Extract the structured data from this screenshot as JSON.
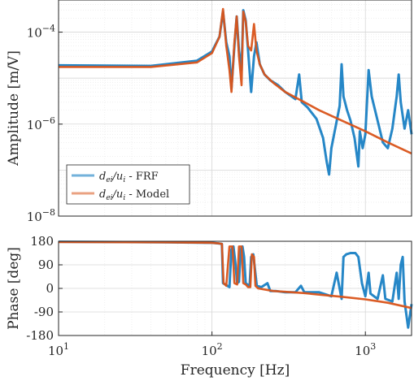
{
  "chart_data": [
    {
      "type": "line",
      "name": "amplitude",
      "ylabel": "Amplitude [m/V]",
      "xscale": "log",
      "yscale": "log",
      "xlim": [
        10,
        2000
      ],
      "ylim": [
        1e-08,
        0.0005
      ],
      "yticks": [
        {
          "value": 1e-08,
          "base": "10",
          "exp": "−8"
        },
        {
          "value": 1e-06,
          "base": "10",
          "exp": "−6"
        },
        {
          "value": 0.0001,
          "base": "10",
          "exp": "−4"
        }
      ],
      "grid": true,
      "legend": {
        "placement": "bottom-left",
        "entries": [
          {
            "prefix": "d",
            "sub1": "ei",
            "mid": "/u",
            "sub2": "i",
            "suffix": " - FRF"
          },
          {
            "prefix": "d",
            "sub1": "ei",
            "mid": "/u",
            "sub2": "i",
            "suffix": " - Model"
          }
        ]
      },
      "series": [
        {
          "name": "FRF",
          "color": "#0072BD",
          "points": [
            [
              10,
              1.9e-05
            ],
            [
              40,
              1.85e-05
            ],
            [
              80,
              2.4e-05
            ],
            [
              100,
              3.8e-05
            ],
            [
              112,
              8e-05
            ],
            [
              118,
              0.00028
            ],
            [
              124,
              6e-05
            ],
            [
              130,
              3e-05
            ],
            [
              134,
              6e-06
            ],
            [
              140,
              5e-05
            ],
            [
              145,
              0.00022
            ],
            [
              150,
              4e-05
            ],
            [
              156,
              1.5e-05
            ],
            [
              160,
              0.0003
            ],
            [
              166,
              0.00018
            ],
            [
              172,
              4e-05
            ],
            [
              180,
              5e-06
            ],
            [
              188,
              3e-05
            ],
            [
              195,
              6e-05
            ],
            [
              205,
              2e-05
            ],
            [
              220,
              1.2e-05
            ],
            [
              240,
              9e-06
            ],
            [
              270,
              7e-06
            ],
            [
              300,
              5e-06
            ],
            [
              330,
              4e-06
            ],
            [
              350,
              3.5e-06
            ],
            [
              370,
              1.2e-05
            ],
            [
              385,
              3e-06
            ],
            [
              420,
              2.3e-06
            ],
            [
              480,
              1.3e-06
            ],
            [
              530,
              5e-07
            ],
            [
              560,
              1.5e-07
            ],
            [
              580,
              8e-08
            ],
            [
              600,
              3e-07
            ],
            [
              640,
              9e-07
            ],
            [
              680,
              2.5e-06
            ],
            [
              700,
              2e-05
            ],
            [
              720,
              4e-06
            ],
            [
              760,
              2e-06
            ],
            [
              800,
              1.2e-06
            ],
            [
              850,
              5e-07
            ],
            [
              900,
              1.2e-07
            ],
            [
              920,
              7e-07
            ],
            [
              960,
              3e-07
            ],
            [
              1000,
              6e-07
            ],
            [
              1050,
              1.5e-05
            ],
            [
              1100,
              4e-06
            ],
            [
              1200,
              1.2e-06
            ],
            [
              1300,
              4e-07
            ],
            [
              1400,
              3e-07
            ],
            [
              1500,
              8e-07
            ],
            [
              1600,
              4e-06
            ],
            [
              1650,
              1.2e-05
            ],
            [
              1700,
              3e-06
            ],
            [
              1800,
              8e-07
            ],
            [
              1900,
              2e-06
            ],
            [
              2000,
              6e-07
            ]
          ]
        },
        {
          "name": "Model",
          "color": "#D95319",
          "points": [
            [
              10,
              1.75e-05
            ],
            [
              40,
              1.75e-05
            ],
            [
              80,
              2.2e-05
            ],
            [
              100,
              3.5e-05
            ],
            [
              112,
              8e-05
            ],
            [
              118,
              0.00032
            ],
            [
              124,
              5e-05
            ],
            [
              130,
              1.5e-05
            ],
            [
              134,
              5e-06
            ],
            [
              140,
              6e-05
            ],
            [
              145,
              0.00022
            ],
            [
              150,
              3e-05
            ],
            [
              156,
              7e-06
            ],
            [
              160,
              0.00028
            ],
            [
              166,
              0.00017
            ],
            [
              172,
              5e-05
            ],
            [
              180,
              4e-05
            ],
            [
              188,
              0.00015
            ],
            [
              195,
              4e-05
            ],
            [
              205,
              2e-05
            ],
            [
              220,
              1.2e-05
            ],
            [
              250,
              8e-06
            ],
            [
              300,
              5e-06
            ],
            [
              400,
              3e-06
            ],
            [
              500,
              2e-06
            ],
            [
              700,
              1.2e-06
            ],
            [
              1000,
              7e-07
            ],
            [
              1400,
              4e-07
            ],
            [
              2000,
              2.3e-07
            ]
          ]
        }
      ]
    },
    {
      "type": "line",
      "name": "phase",
      "xlabel": "Frequency [Hz]",
      "ylabel": "Phase [deg]",
      "xscale": "log",
      "yscale": "linear",
      "xlim": [
        10,
        2000
      ],
      "ylim": [
        -180,
        180
      ],
      "yticks": [
        "-180",
        "-90",
        "0",
        "90",
        "180"
      ],
      "xticks": [
        {
          "value": 10,
          "base": "10",
          "exp": "1"
        },
        {
          "value": 100,
          "base": "10",
          "exp": "2"
        },
        {
          "value": 1000,
          "base": "10",
          "exp": "3"
        }
      ],
      "grid": true,
      "series": [
        {
          "name": "FRF",
          "color": "#0072BD",
          "points": [
            [
              10,
              178
            ],
            [
              50,
              176
            ],
            [
              100,
              174
            ],
            [
              110,
              172
            ],
            [
              116,
              170
            ],
            [
              118,
              20
            ],
            [
              122,
              15
            ],
            [
              126,
              10
            ],
            [
              130,
              5
            ],
            [
              134,
              150
            ],
            [
              138,
              160
            ],
            [
              142,
              100
            ],
            [
              146,
              20
            ],
            [
              150,
              25
            ],
            [
              154,
              150
            ],
            [
              158,
              160
            ],
            [
              162,
              120
            ],
            [
              166,
              20
            ],
            [
              170,
              15
            ],
            [
              176,
              10
            ],
            [
              180,
              120
            ],
            [
              186,
              130
            ],
            [
              190,
              80
            ],
            [
              196,
              10
            ],
            [
              210,
              5
            ],
            [
              230,
              20
            ],
            [
              240,
              -10
            ],
            [
              260,
              -10
            ],
            [
              300,
              -15
            ],
            [
              350,
              -15
            ],
            [
              380,
              10
            ],
            [
              400,
              -15
            ],
            [
              500,
              -15
            ],
            [
              600,
              -30
            ],
            [
              650,
              60
            ],
            [
              700,
              -40
            ],
            [
              720,
              120
            ],
            [
              750,
              130
            ],
            [
              800,
              135
            ],
            [
              860,
              135
            ],
            [
              900,
              120
            ],
            [
              950,
              20
            ],
            [
              1000,
              -30
            ],
            [
              1050,
              60
            ],
            [
              1080,
              -20
            ],
            [
              1200,
              -40
            ],
            [
              1300,
              50
            ],
            [
              1350,
              -40
            ],
            [
              1500,
              -50
            ],
            [
              1600,
              60
            ],
            [
              1650,
              -40
            ],
            [
              1700,
              90
            ],
            [
              1750,
              120
            ],
            [
              1800,
              -50
            ],
            [
              1900,
              -150
            ],
            [
              2000,
              -60
            ]
          ]
        },
        {
          "name": "Model",
          "color": "#D95319",
          "points": [
            [
              10,
              177
            ],
            [
              50,
              176
            ],
            [
              100,
              174
            ],
            [
              110,
              172
            ],
            [
              116,
              170
            ],
            [
              119,
              20
            ],
            [
              124,
              10
            ],
            [
              130,
              160
            ],
            [
              136,
              160
            ],
            [
              140,
              20
            ],
            [
              146,
              15
            ],
            [
              150,
              160
            ],
            [
              156,
              160
            ],
            [
              160,
              20
            ],
            [
              166,
              15
            ],
            [
              172,
              5
            ],
            [
              178,
              5
            ],
            [
              182,
              130
            ],
            [
              188,
              120
            ],
            [
              192,
              10
            ],
            [
              200,
              0
            ],
            [
              250,
              -10
            ],
            [
              300,
              -13
            ],
            [
              400,
              -18
            ],
            [
              500,
              -24
            ],
            [
              700,
              -32
            ],
            [
              1000,
              -42
            ],
            [
              1400,
              -55
            ],
            [
              2000,
              -75
            ]
          ]
        }
      ]
    }
  ]
}
